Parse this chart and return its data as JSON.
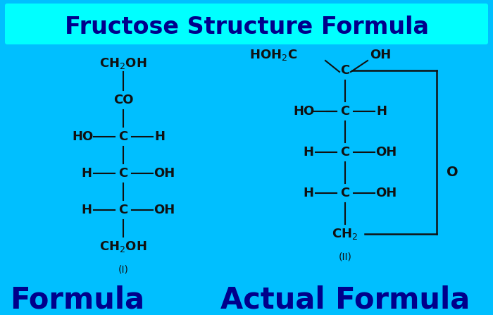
{
  "bg_color": "#00BFFF",
  "title_box_color": "#00FFFF",
  "title_text": "Fructose Structure Formula",
  "title_color": "#00008B",
  "formula_label_left": "Formula",
  "formula_label_right": "Actual Formula",
  "formula_label_color": "#00008B",
  "structure_color": "#111111",
  "roman_i": "(I)",
  "roman_ii": "(II)"
}
